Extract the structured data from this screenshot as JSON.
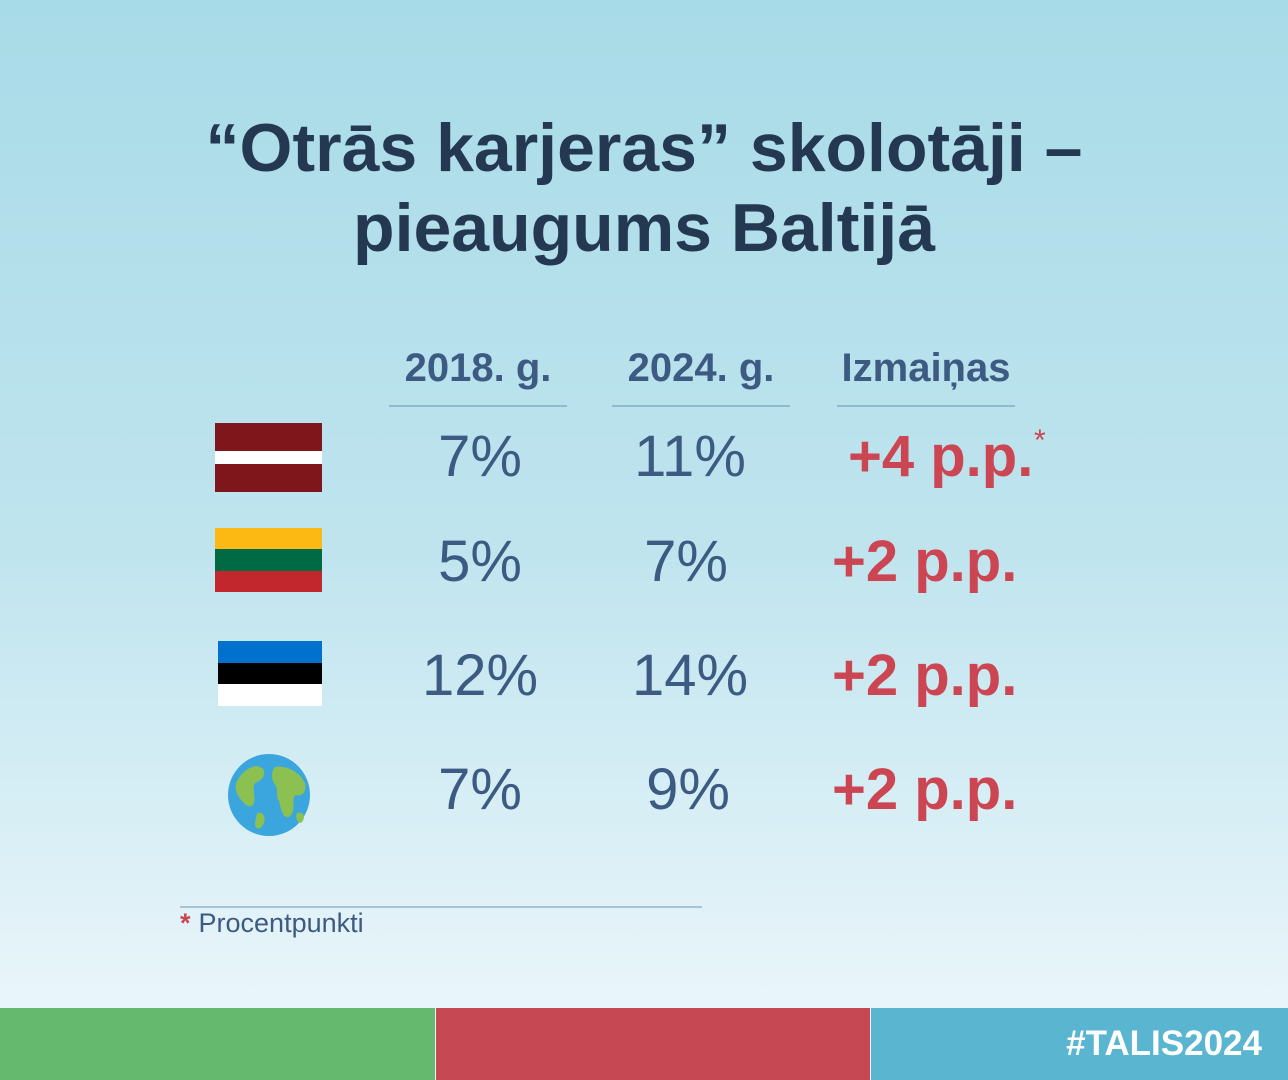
{
  "title_line1": "“Otrās karjeras” skolotāji –",
  "title_line2": "pieaugums Baltijā",
  "chart_data": {
    "type": "table",
    "columns": [
      "2018. g.",
      "2024. g.",
      "Izmaiņas"
    ],
    "rows": [
      {
        "icon": "latvia-flag-icon",
        "v2018": "7%",
        "v2024": "11%",
        "change": "+4 p.p.",
        "marker": "*"
      },
      {
        "icon": "lithuania-flag-icon",
        "v2018": "5%",
        "v2024": "7%",
        "change": "+2 p.p."
      },
      {
        "icon": "estonia-flag-icon",
        "v2018": "12%",
        "v2024": "14%",
        "change": "+2 p.p."
      },
      {
        "icon": "globe-icon",
        "v2018": "7%",
        "v2024": "9%",
        "change": "+2 p.p."
      }
    ]
  },
  "footnote": {
    "marker": "*",
    "text": "Procentpunkti"
  },
  "hashtag": "#TALIS2024",
  "colors": {
    "title": "#243852",
    "value": "#3d5b82",
    "change": "#cc4552",
    "green": "#65b96f",
    "red": "#c54852",
    "blue": "#5ab6d0"
  }
}
